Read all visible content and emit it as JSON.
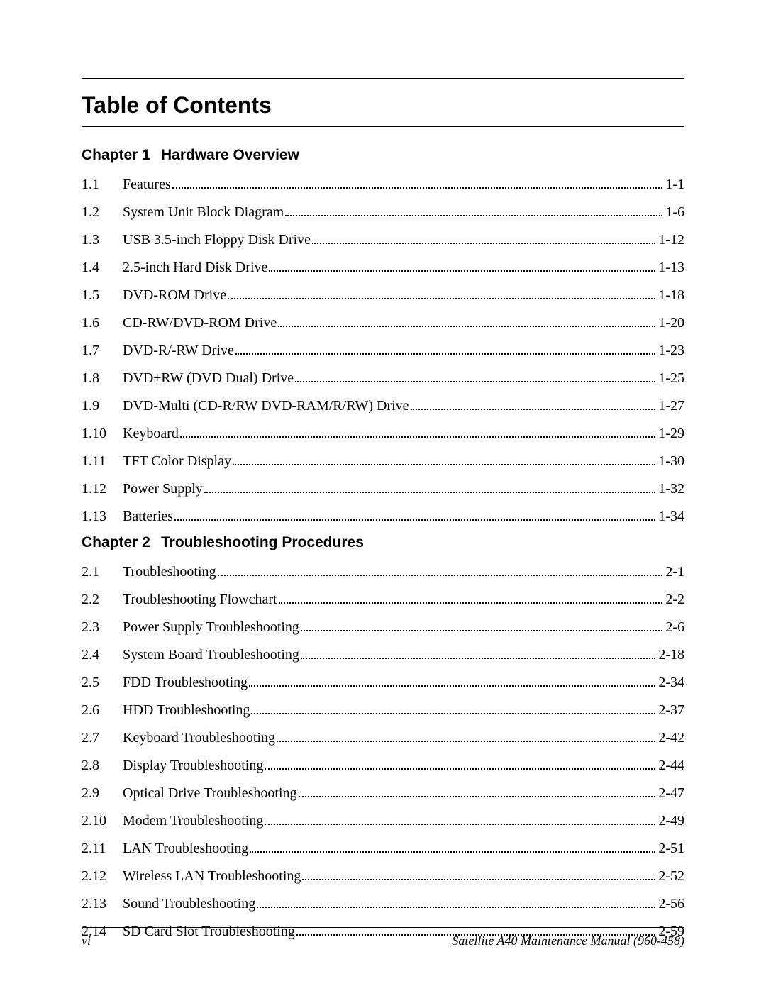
{
  "title": "Table of Contents",
  "chapters": [
    {
      "label": "Chapter 1",
      "name": "Hardware Overview",
      "entries": [
        {
          "num": "1.1",
          "title": "Features",
          "page": "1-1"
        },
        {
          "num": "1.2",
          "title": "System Unit Block Diagram",
          "page": "1-6"
        },
        {
          "num": "1.3",
          "title": "USB 3.5-inch Floppy Disk Drive",
          "page": "1-12"
        },
        {
          "num": "1.4",
          "title": "2.5-inch Hard Disk Drive",
          "page": "1-13"
        },
        {
          "num": "1.5",
          "title": "DVD-ROM Drive",
          "page": "1-18"
        },
        {
          "num": "1.6",
          "title": "CD-RW/DVD-ROM Drive",
          "page": "1-20"
        },
        {
          "num": "1.7",
          "title": "DVD-R/-RW Drive",
          "page": "1-23"
        },
        {
          "num": "1.8",
          "title": "DVD±RW (DVD Dual) Drive",
          "page": "1-25"
        },
        {
          "num": "1.9",
          "title": "DVD-Multi (CD-R/RW DVD-RAM/R/RW) Drive",
          "page": "1-27"
        },
        {
          "num": "1.10",
          "title": "Keyboard",
          "page": "1-29"
        },
        {
          "num": "1.11",
          "title": "TFT Color Display",
          "page": "1-30"
        },
        {
          "num": "1.12",
          "title": "Power Supply",
          "page": "1-32"
        },
        {
          "num": "1.13",
          "title": "Batteries",
          "page": "1-34"
        }
      ]
    },
    {
      "label": "Chapter 2",
      "name": "Troubleshooting Procedures",
      "entries": [
        {
          "num": "2.1",
          "title": "Troubleshooting",
          "page": "2-1"
        },
        {
          "num": "2.2",
          "title": "Troubleshooting Flowchart",
          "page": "2-2"
        },
        {
          "num": "2.3",
          "title": "Power Supply Troubleshooting",
          "page": "2-6"
        },
        {
          "num": "2.4",
          "title": "System Board Troubleshooting",
          "page": "2-18"
        },
        {
          "num": "2.5",
          "title": "FDD Troubleshooting",
          "page": "2-34"
        },
        {
          "num": "2.6",
          "title": "HDD Troubleshooting",
          "page": "2-37"
        },
        {
          "num": "2.7",
          "title": "Keyboard Troubleshooting",
          "page": "2-42"
        },
        {
          "num": "2.8",
          "title": "Display Troubleshooting",
          "page": "2-44"
        },
        {
          "num": "2.9",
          "title": "Optical Drive Troubleshooting",
          "page": "2-47"
        },
        {
          "num": "2.10",
          "title": "Modem Troubleshooting",
          "page": "2-49"
        },
        {
          "num": "2.11",
          "title": "LAN Troubleshooting",
          "page": "2-51"
        },
        {
          "num": "2.12",
          "title": "Wireless LAN Troubleshooting",
          "page": "2-52"
        },
        {
          "num": "2.13",
          "title": "Sound Troubleshooting",
          "page": "2-56"
        },
        {
          "num": "2.14",
          "title": "SD Card Slot Troubleshooting",
          "page": "2-59"
        }
      ]
    }
  ],
  "footer": {
    "page_num": "vi",
    "manual_ref": "Satellite A40 Maintenance Manual (960-458)"
  },
  "colors": {
    "text": "#000000",
    "background": "#ffffff"
  },
  "fonts": {
    "heading_family": "Arial, Helvetica, sans-serif",
    "body_family": "Times New Roman, Times, serif",
    "title_size_pt": 24,
    "chapter_size_pt": 16,
    "entry_size_pt": 15,
    "footer_size_pt": 13
  }
}
